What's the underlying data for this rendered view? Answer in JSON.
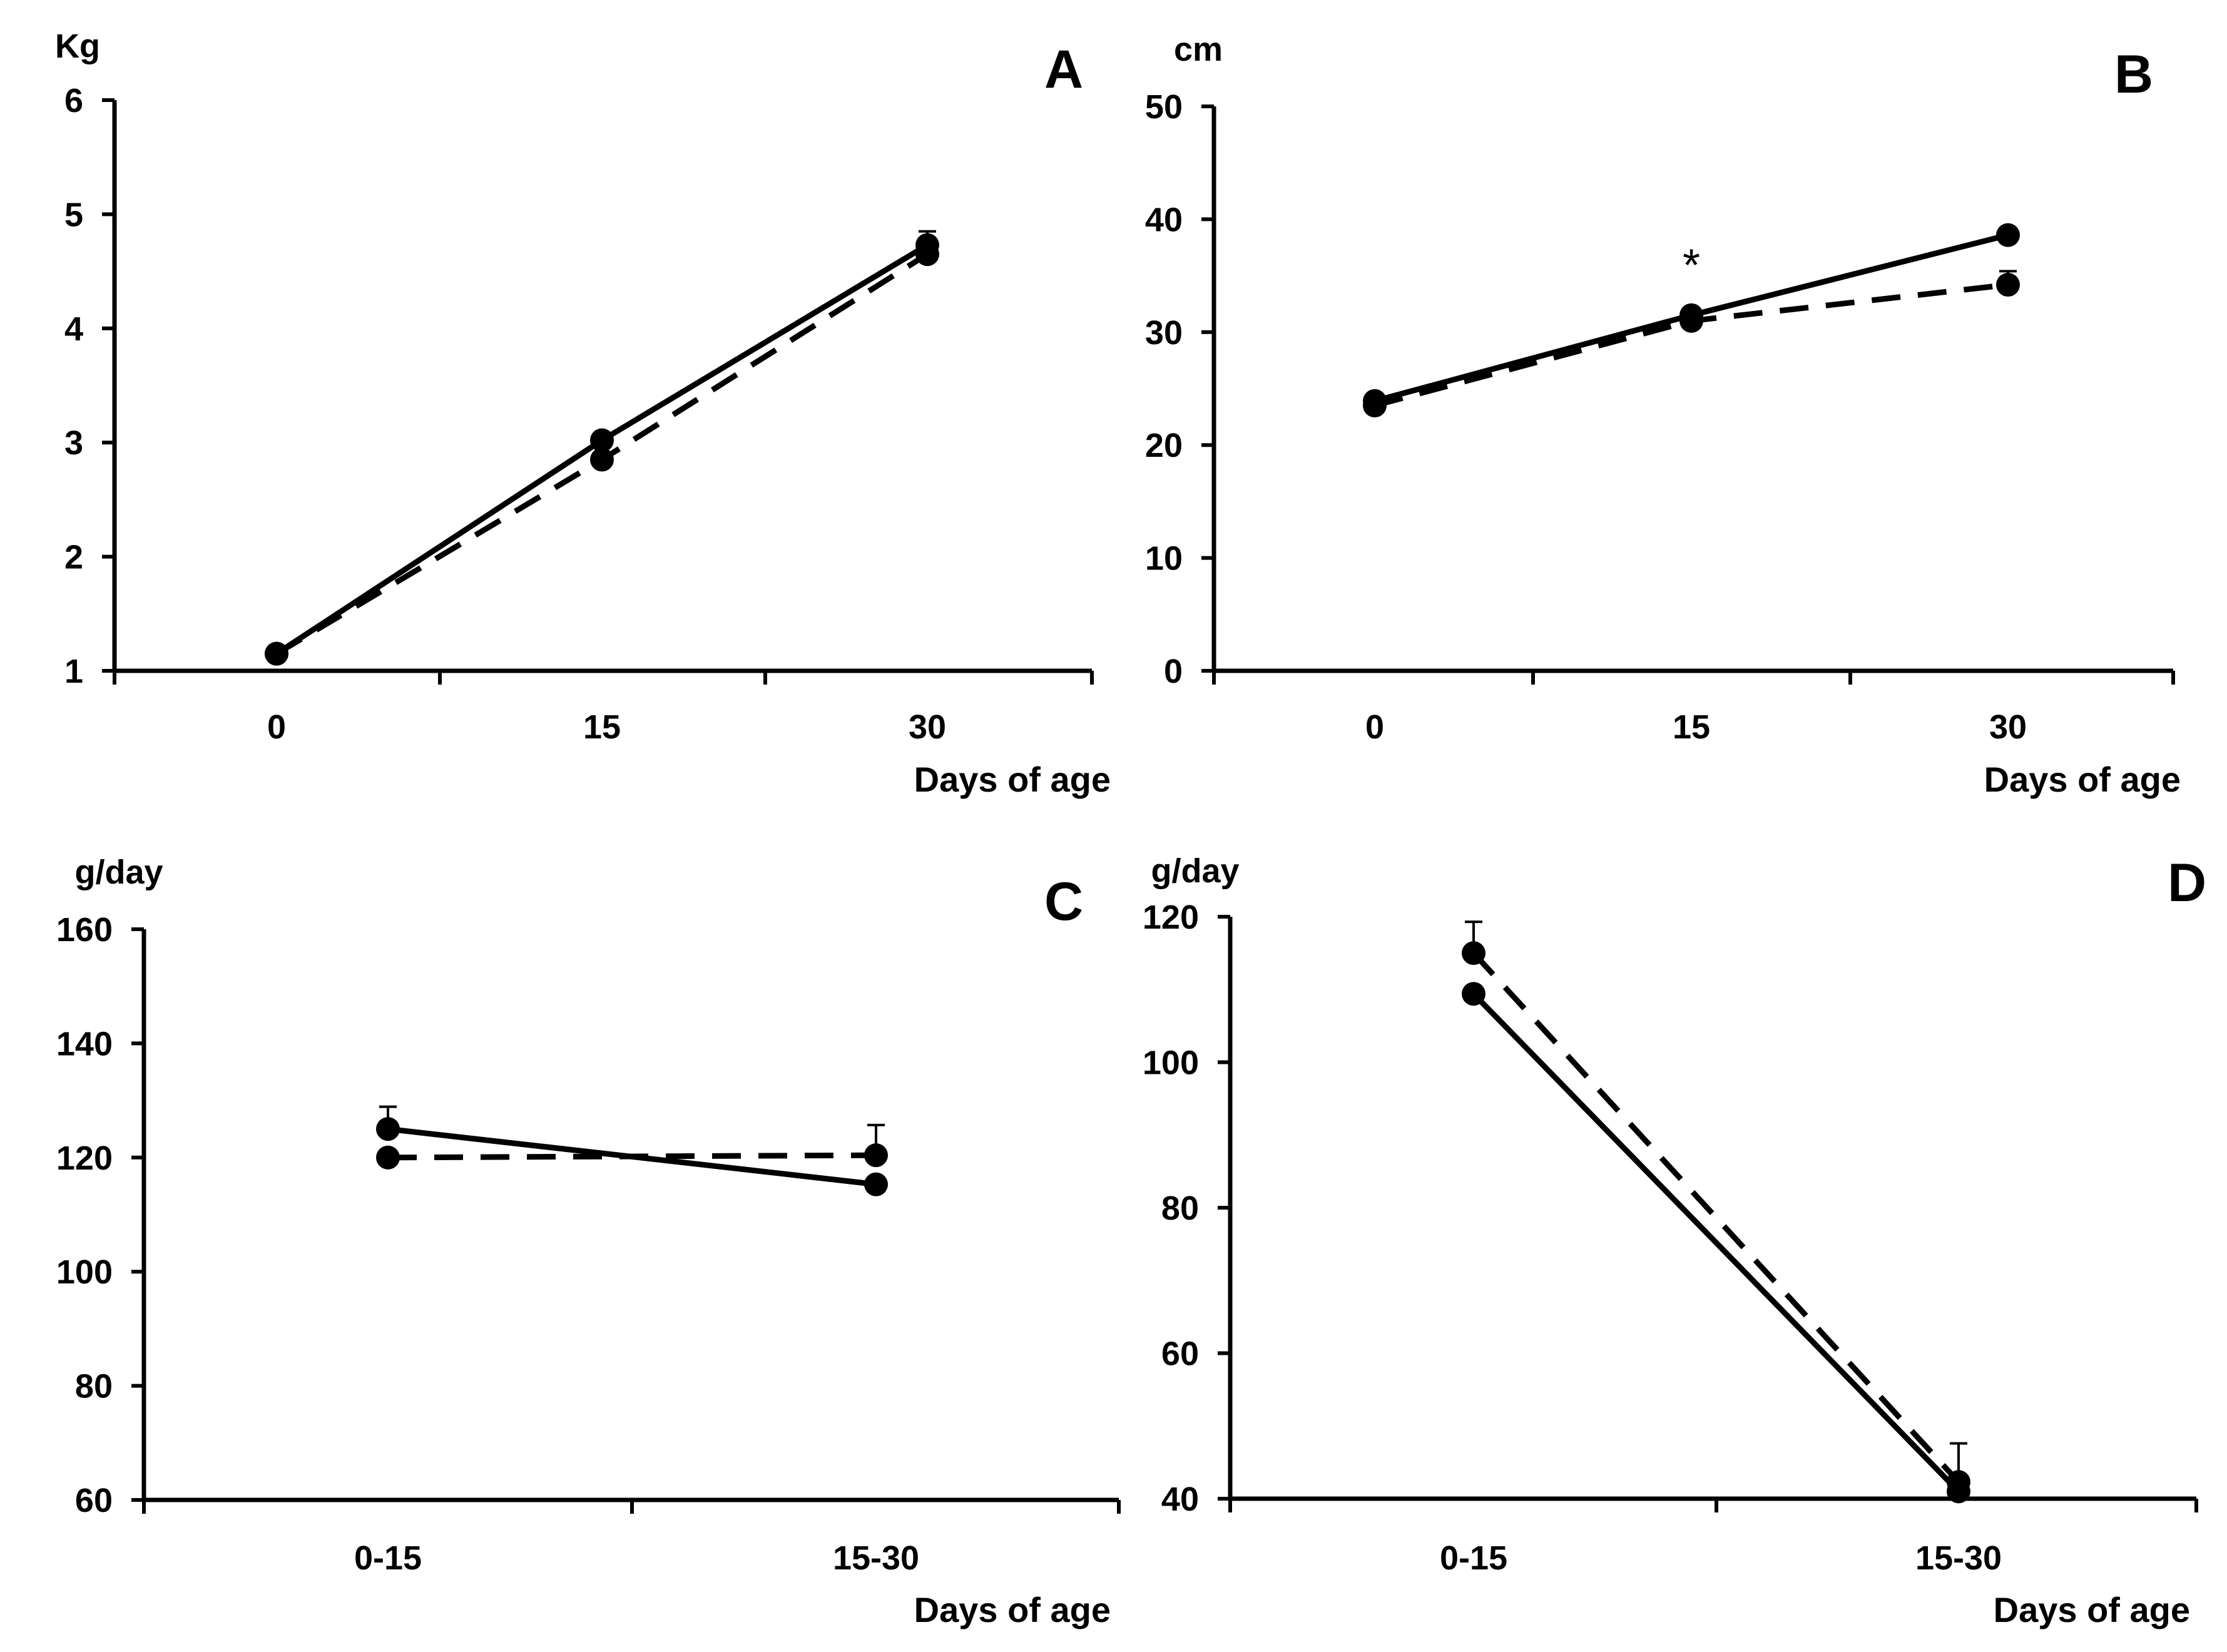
{
  "figure": {
    "layout": "2x2"
  },
  "chart_data": [
    {
      "panel": "A",
      "type": "line",
      "ylabel": "Kg",
      "xlabel": "Days of age",
      "ylim": [
        1,
        6
      ],
      "yticks": [
        1,
        2,
        3,
        4,
        5,
        6
      ],
      "categories": [
        "0",
        "15",
        "30"
      ],
      "series": [
        {
          "name": "solid",
          "style": "solid",
          "values": [
            1.15,
            3.02,
            4.73
          ],
          "errors": [
            0,
            0,
            0.12
          ]
        },
        {
          "name": "dashed",
          "style": "dashed",
          "values": [
            1.15,
            2.85,
            4.65
          ],
          "errors": [
            0,
            0,
            0
          ]
        }
      ],
      "annotations": []
    },
    {
      "panel": "B",
      "type": "line",
      "ylabel": "cm",
      "xlabel": "Days of age",
      "ylim": [
        0,
        50
      ],
      "yticks": [
        0,
        10,
        20,
        30,
        40,
        50
      ],
      "categories": [
        "0",
        "15",
        "30"
      ],
      "series": [
        {
          "name": "solid",
          "style": "solid",
          "values": [
            23.9,
            31.5,
            38.6
          ],
          "errors": [
            0,
            0,
            0
          ]
        },
        {
          "name": "dashed",
          "style": "dashed",
          "values": [
            23.5,
            31.0,
            34.2
          ],
          "errors": [
            0,
            0,
            1.2
          ]
        }
      ],
      "annotations": [
        {
          "category": "15",
          "value": 36.0,
          "text": "*"
        }
      ]
    },
    {
      "panel": "C",
      "type": "line",
      "ylabel": "g/day",
      "xlabel": "Days of age",
      "ylim": [
        60,
        160
      ],
      "yticks": [
        60,
        80,
        100,
        120,
        140,
        160
      ],
      "categories": [
        "0-15",
        "15-30"
      ],
      "series": [
        {
          "name": "solid",
          "style": "solid",
          "values": [
            125.0,
            115.3
          ],
          "errors": [
            3.9,
            0
          ]
        },
        {
          "name": "dashed",
          "style": "dashed",
          "values": [
            120.0,
            120.4
          ],
          "errors": [
            0,
            5.3
          ]
        }
      ],
      "annotations": []
    },
    {
      "panel": "D",
      "type": "line",
      "ylabel": "g/day",
      "xlabel": "Days of age",
      "ylim": [
        40,
        120
      ],
      "yticks": [
        40,
        60,
        80,
        100,
        120
      ],
      "categories": [
        "0-15",
        "15-30"
      ],
      "series": [
        {
          "name": "solid",
          "style": "solid",
          "values": [
            109.4,
            41.0
          ],
          "errors": [
            0,
            0
          ]
        },
        {
          "name": "dashed",
          "style": "dashed",
          "values": [
            115.0,
            42.3
          ],
          "errors": [
            4.3,
            5.3
          ]
        }
      ],
      "annotations": []
    }
  ]
}
